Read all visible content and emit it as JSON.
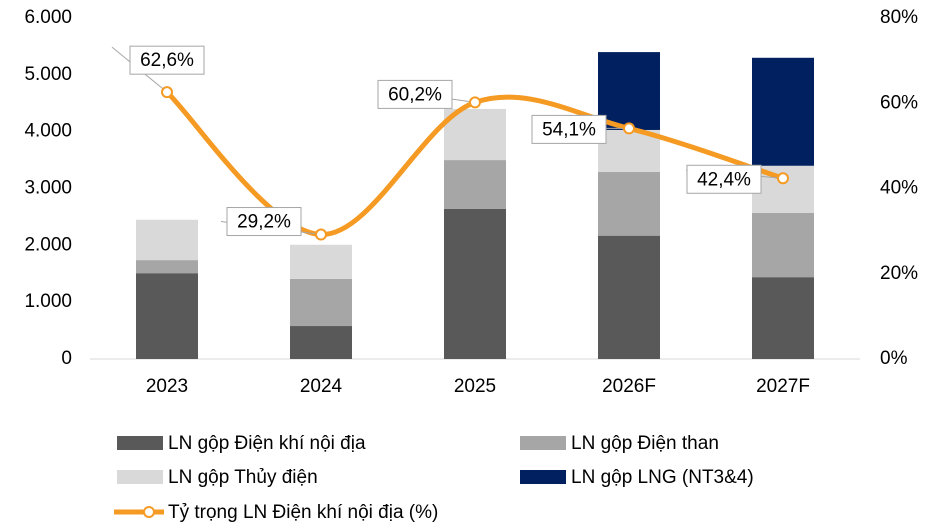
{
  "chart_data": {
    "type": "bar",
    "categories": [
      "2023",
      "2024",
      "2025",
      "2026F",
      "2027F"
    ],
    "series": [
      {
        "name": "LN gộp Điện khí nội địa",
        "color": "#595959",
        "values": [
          1510,
          580,
          2640,
          2170,
          1440
        ]
      },
      {
        "name": "LN gộp Điện than",
        "color": "#a6a6a6",
        "values": [
          230,
          830,
          860,
          1120,
          1130
        ]
      },
      {
        "name": "LN gộp Thủy điện",
        "color": "#d9d9d9",
        "values": [
          710,
          600,
          900,
          740,
          830
        ]
      },
      {
        "name": "LN gộp LNG (NT3&4)",
        "color": "#002060",
        "values": [
          0,
          0,
          0,
          1370,
          1900
        ]
      },
      {
        "name": "Tỷ trọng LN Điện khí nội địa (%)",
        "color": "#f59a23",
        "type": "line",
        "axis": "y2",
        "values": [
          62.6,
          29.2,
          60.2,
          54.1,
          42.4
        ],
        "value_labels": [
          "62,6%",
          "29,2%",
          "60,2%",
          "54,1%",
          "42,4%"
        ]
      }
    ],
    "ylim": [
      0,
      6000
    ],
    "yticks": [
      0,
      {
        "value": 1000,
        "label": "1.000"
      },
      {
        "value": 2000,
        "label": "2.000"
      },
      {
        "value": 3000,
        "label": "3.000"
      },
      {
        "value": 4000,
        "label": "4.000"
      },
      {
        "value": 5000,
        "label": "5.000"
      },
      {
        "value": 6000,
        "label": "6.000"
      }
    ],
    "y2lim": [
      0,
      80
    ],
    "y2ticks": [
      {
        "value": 0,
        "label": "0%"
      },
      {
        "value": 20,
        "label": "20%"
      },
      {
        "value": 40,
        "label": "40%"
      },
      {
        "value": 60,
        "label": "60%"
      },
      {
        "value": 80,
        "label": "80%"
      }
    ],
    "grid": false,
    "legend": "bottom"
  }
}
